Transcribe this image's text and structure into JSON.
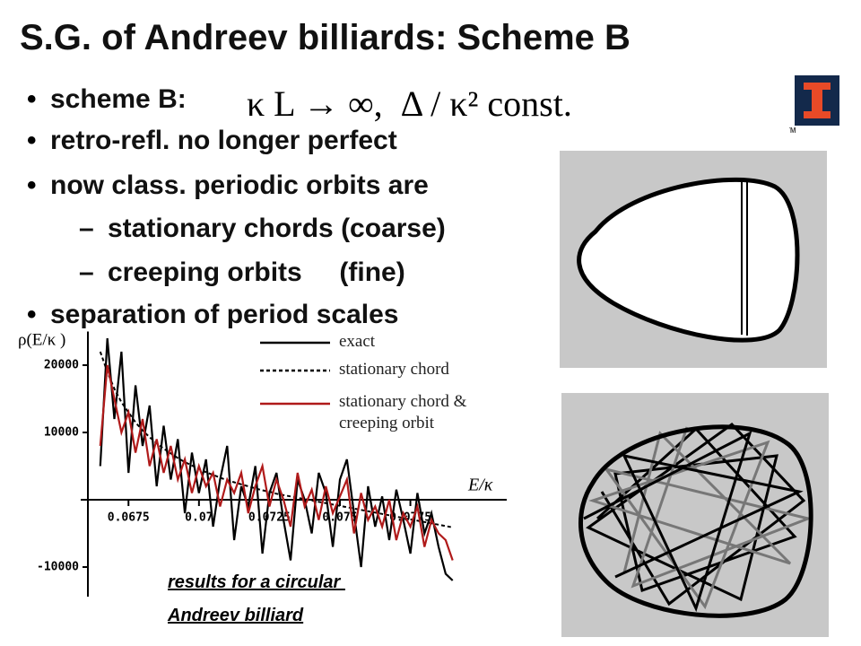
{
  "title": "S.G. of Andreev billiards: Scheme B",
  "bullets": [
    {
      "text": "scheme B:",
      "formula": "κ L → ∞,  Δ / κ² const."
    },
    {
      "text": "retro-refl. no longer perfect"
    },
    {
      "text": "now class. periodic orbits are",
      "subitems": [
        "stationary chords (coarse)",
        "creeping orbits     (fine)"
      ]
    },
    {
      "text": "separation of period scales"
    }
  ],
  "logo_mark": "TM",
  "caption": [
    "results for a circular ",
    "Andreev billiard"
  ],
  "chart_data": {
    "type": "line",
    "ylabel": "ρ(E/κ )",
    "xlabel": "E/κ",
    "x": [
      0.0665,
      0.06675,
      0.067,
      0.06725,
      0.0675,
      0.06775,
      0.068,
      0.06825,
      0.0685,
      0.06875,
      0.069,
      0.06925,
      0.0695,
      0.06975,
      0.07,
      0.07025,
      0.0705,
      0.07075,
      0.071,
      0.07125,
      0.0715,
      0.07175,
      0.072,
      0.07225,
      0.0725,
      0.07275,
      0.073,
      0.07325,
      0.0735,
      0.07375,
      0.074,
      0.07425,
      0.0745,
      0.07475,
      0.075,
      0.07525,
      0.0755,
      0.07575,
      0.076,
      0.07625,
      0.0765,
      0.07675,
      0.077,
      0.07725,
      0.0775,
      0.07775,
      0.078,
      0.07825,
      0.0785,
      0.07875,
      0.079
    ],
    "series": [
      {
        "name": "exact",
        "color": "#000000",
        "style": "solid",
        "values": [
          5000,
          24000,
          12000,
          22000,
          4000,
          17000,
          8000,
          14000,
          2000,
          11000,
          3000,
          9000,
          -2000,
          7000,
          1000,
          6000,
          -4000,
          3000,
          8000,
          -6000,
          2000,
          -1000,
          5000,
          -8000,
          1000,
          4000,
          -3000,
          -9000,
          3000,
          0,
          -5000,
          4000,
          1000,
          -7000,
          3000,
          6000,
          -2000,
          -10000,
          2000,
          -4000,
          500,
          -6000,
          1500,
          -3000,
          -8000,
          1000,
          -5000,
          -2000,
          -7000,
          -11000,
          -12000
        ]
      },
      {
        "name": "stationary chord",
        "color": "#000000",
        "style": "dashed",
        "values": [
          22000,
          19000,
          16500,
          14500,
          13000,
          11500,
          10300,
          9300,
          8400,
          7600,
          6900,
          6200,
          5600,
          5100,
          4600,
          4100,
          3700,
          3300,
          2900,
          2600,
          2300,
          2000,
          1700,
          1400,
          1200,
          900,
          700,
          500,
          300,
          100,
          -100,
          -300,
          -500,
          -700,
          -900,
          -1100,
          -1300,
          -1500,
          -1700,
          -1900,
          -2100,
          -2300,
          -2500,
          -2700,
          -2900,
          -3100,
          -3300,
          -3500,
          -3700,
          -3900,
          -4100
        ]
      },
      {
        "name": "stationary chord & creeping orbit",
        "color": "#b01a1a",
        "style": "solid",
        "values": [
          8000,
          20000,
          15000,
          10000,
          13000,
          7000,
          12000,
          5000,
          9000,
          4000,
          8000,
          3000,
          6000,
          1000,
          5000,
          2000,
          4000,
          -1000,
          3000,
          1000,
          4000,
          -2000,
          2000,
          5000,
          -1000,
          3000,
          0,
          -4000,
          4000,
          -1000,
          1500,
          -3000,
          2000,
          -2000,
          500,
          3000,
          -5000,
          1000,
          -3000,
          -1000,
          -4000,
          0,
          -6000,
          -2000,
          -4000,
          -1000,
          -7000,
          -3000,
          -5000,
          -6000,
          -9000
        ]
      }
    ],
    "xlim": [
      0.06606,
      0.0806
    ],
    "xticks": [
      0.0675,
      0.07,
      0.0725,
      0.075,
      0.0775
    ],
    "ylim": [
      -14400,
      25000
    ],
    "yticks": [
      20000,
      10000,
      -10000
    ]
  }
}
